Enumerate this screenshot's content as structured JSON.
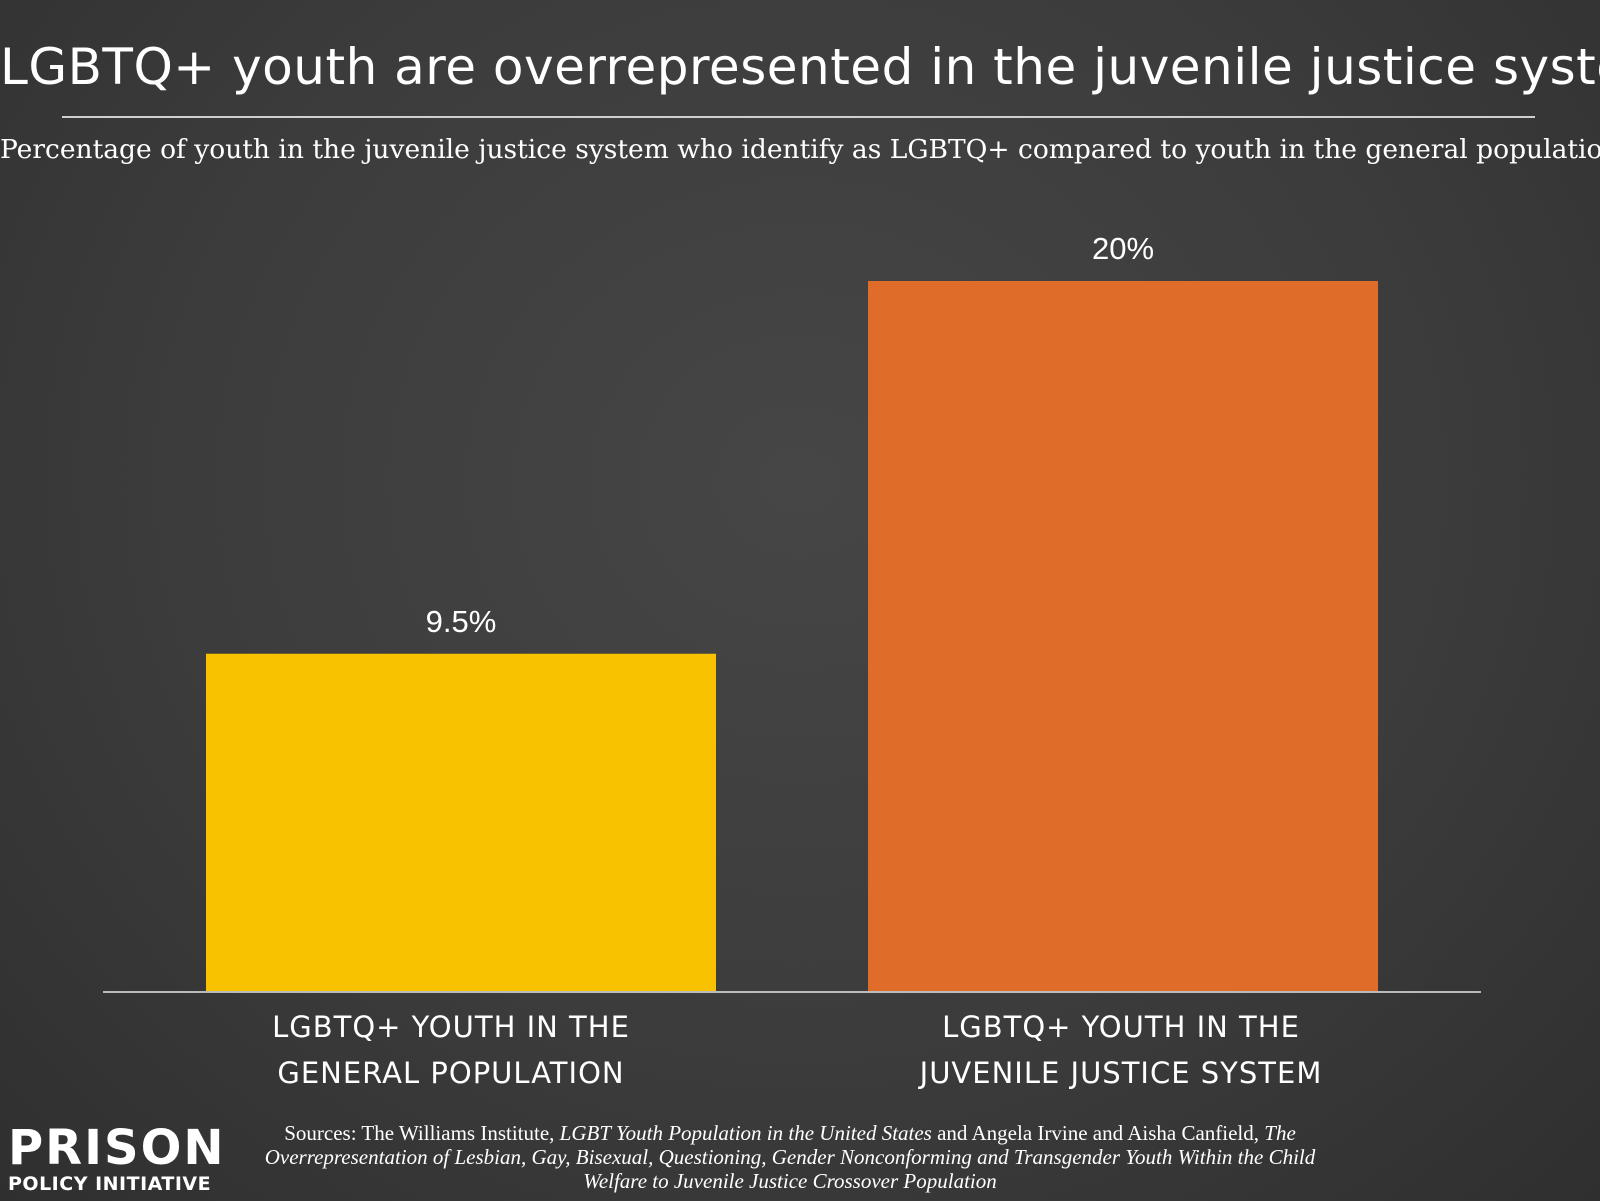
{
  "title": "LGBTQ+ youth are overrepresented in the juvenile justice system",
  "subtitle": "Percentage of youth in the juvenile justice system who identify as LGBTQ+ compared to youth in the general population",
  "chart_data": {
    "type": "bar",
    "categories": [
      [
        "LGBTQ+ YOUTH IN THE",
        "GENERAL POPULATION"
      ],
      [
        "LGBTQ+ YOUTH IN THE",
        "JUVENILE JUSTICE SYSTEM"
      ]
    ],
    "values": [
      9.5,
      20
    ],
    "value_labels": [
      "9.5%",
      "20%"
    ],
    "colors": [
      "#f9c200",
      "#e06c2a"
    ],
    "ylim": [
      0,
      20
    ],
    "grid": false,
    "legend": "none"
  },
  "sources": {
    "prefix": "Sources: The Williams Institute, ",
    "work1": "LGBT Youth Population in the United States",
    "middle": " and Angela Irvine and Aisha Canfield, ",
    "work2": "The Overrepresentation of Lesbian, Gay, Bisexual, Questioning, Gender Nonconforming and Transgender Youth Within the Child Welfare to Juvenile Justice Crossover Population"
  },
  "logo": {
    "line1": "PRISON",
    "line2": "POLICY INITIATIVE"
  }
}
